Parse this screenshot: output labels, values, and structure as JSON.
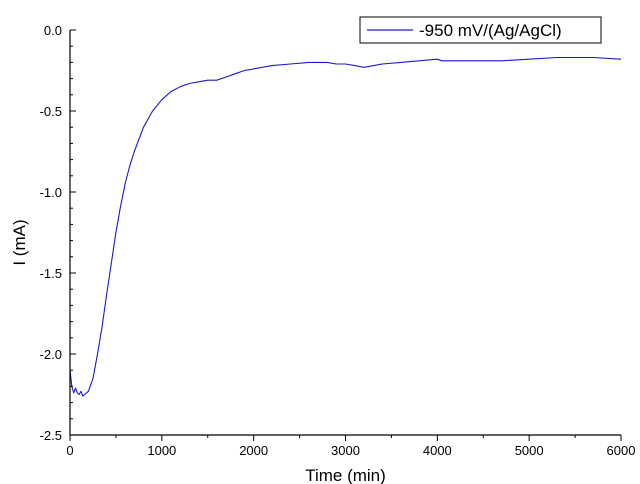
{
  "chart_data": {
    "type": "line",
    "xlabel": "Time (min)",
    "ylabel": "I (mA)",
    "xlim": [
      0,
      6000
    ],
    "ylim": [
      -2.5,
      0.0
    ],
    "x_ticks": [
      0,
      1000,
      2000,
      3000,
      4000,
      5000,
      6000
    ],
    "y_ticks": [
      0.0,
      -0.5,
      -1.0,
      -1.5,
      -2.0,
      -2.5
    ],
    "x_tick_labels": [
      "0",
      "1000",
      "2000",
      "3000",
      "4000",
      "5000",
      "6000"
    ],
    "y_tick_labels": [
      "0.0",
      "-0.5",
      "-1.0",
      "-1.5",
      "-2.0",
      "-2.5"
    ],
    "grid": false,
    "legend_position": "top-right",
    "series": [
      {
        "name": "-950 mV/(Ag/AgCl)",
        "color": "#1a1acc",
        "x": [
          0,
          20,
          40,
          60,
          80,
          100,
          120,
          140,
          160,
          200,
          250,
          300,
          350,
          400,
          450,
          500,
          550,
          600,
          650,
          700,
          800,
          900,
          1000,
          1100,
          1200,
          1300,
          1400,
          1500,
          1600,
          1700,
          1800,
          1900,
          2000,
          2200,
          2400,
          2600,
          2800,
          2900,
          3000,
          3100,
          3200,
          3400,
          3600,
          3800,
          4000,
          4050,
          4100,
          4300,
          4500,
          4700,
          5000,
          5300,
          5500,
          5700,
          6000
        ],
        "y": [
          -2.1,
          -2.2,
          -2.24,
          -2.21,
          -2.24,
          -2.25,
          -2.23,
          -2.26,
          -2.25,
          -2.23,
          -2.15,
          -2.0,
          -1.83,
          -1.63,
          -1.44,
          -1.25,
          -1.09,
          -0.95,
          -0.84,
          -0.75,
          -0.6,
          -0.5,
          -0.43,
          -0.38,
          -0.35,
          -0.33,
          -0.32,
          -0.31,
          -0.31,
          -0.29,
          -0.27,
          -0.25,
          -0.24,
          -0.22,
          -0.21,
          -0.2,
          -0.2,
          -0.21,
          -0.21,
          -0.22,
          -0.23,
          -0.21,
          -0.2,
          -0.19,
          -0.18,
          -0.19,
          -0.19,
          -0.19,
          -0.19,
          -0.19,
          -0.18,
          -0.17,
          -0.17,
          -0.17,
          -0.18
        ]
      }
    ]
  }
}
